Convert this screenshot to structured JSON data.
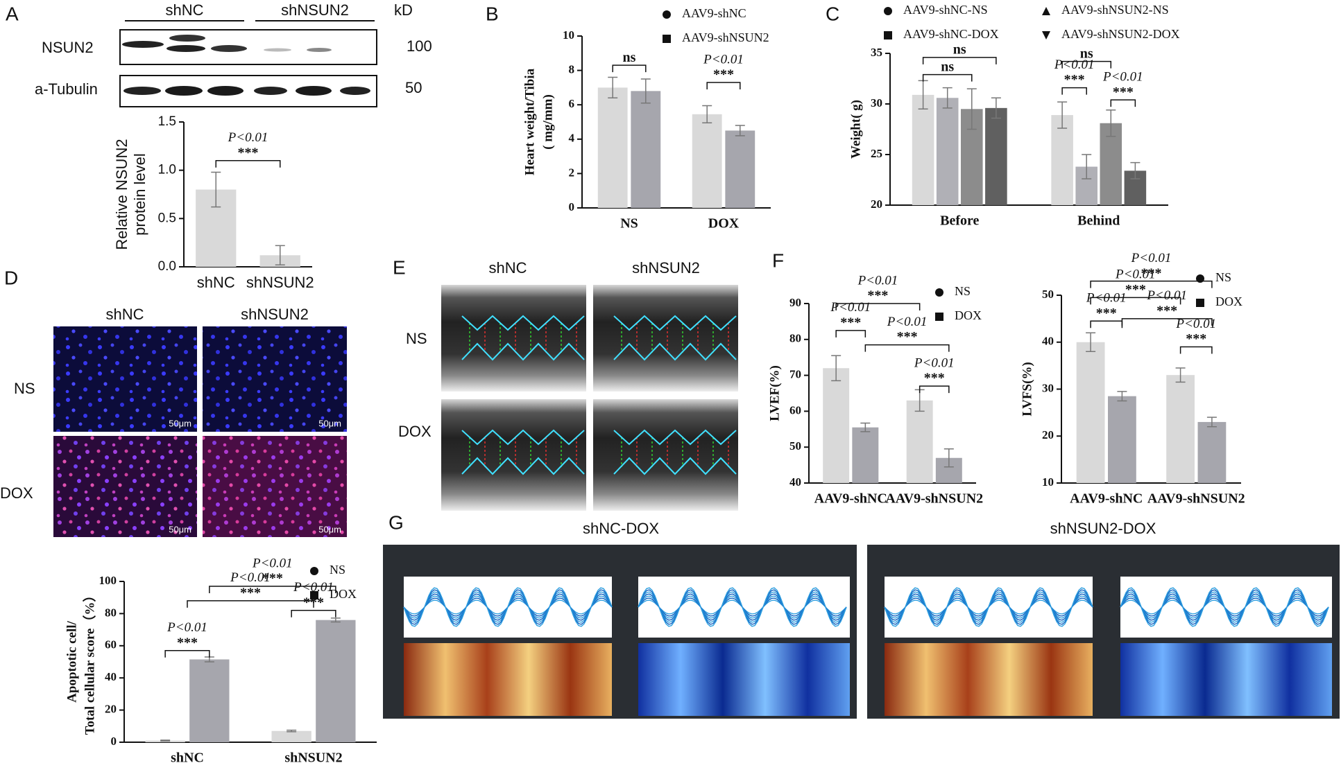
{
  "panels": [
    "A",
    "B",
    "C",
    "D",
    "E",
    "F",
    "G"
  ],
  "blot": {
    "groups": [
      "shNC",
      "shNSUN2"
    ],
    "unit": "kD",
    "rows": [
      {
        "name": "NSUN2",
        "size": "100"
      },
      {
        "name": "a-Tubulin",
        "size": "50"
      }
    ]
  },
  "microscopy": {
    "columns": [
      "shNC",
      "shNSUN2"
    ],
    "rows": [
      "NS",
      "DOX"
    ],
    "scale_bar": "50μm"
  },
  "echo": {
    "columns": [
      "shNC",
      "shNSUN2"
    ],
    "rows": [
      "NS",
      "DOX"
    ]
  },
  "strain": {
    "titles": [
      "shNC-DOX",
      "shNSUN2-DOX"
    ]
  },
  "chart_data": [
    {
      "type": "bar",
      "ylabel": [
        "Relative NSUN2",
        "protein level"
      ],
      "categories": [
        "shNC",
        "shNSUN2"
      ],
      "series": [
        {
          "color": "#d9d9d9",
          "marker": "circle",
          "values": [
            0.8,
            0.12
          ],
          "errors": [
            0.18,
            0.1
          ]
        }
      ],
      "ylim": [
        0,
        1.5
      ],
      "yticks": [
        {
          "value": 0,
          "label": "0.0"
        },
        {
          "value": 0.5,
          "label": "0.5"
        },
        {
          "value": 1,
          "label": "1.0"
        },
        {
          "value": 1.5,
          "label": "1.5"
        }
      ],
      "annotations": [
        {
          "lines": [
            "P<0.01",
            "***"
          ]
        }
      ]
    },
    {
      "type": "bar",
      "ylabel": [
        "Heart weight/Tibia",
        "( mg/mm)"
      ],
      "categories": [
        "NS",
        "DOX"
      ],
      "series": [
        {
          "name": "AAV9-shNC",
          "color": "#d9d9d9",
          "marker": "circle",
          "values": [
            7.0,
            5.45
          ],
          "errors": [
            0.6,
            0.5
          ]
        },
        {
          "name": "AAV9-shNSUN2",
          "color": "#a6a6ad",
          "marker": "square",
          "values": [
            6.8,
            4.5
          ],
          "errors": [
            0.7,
            0.3
          ]
        }
      ],
      "ylim": [
        0,
        10
      ],
      "yticks": [
        0,
        2,
        4,
        6,
        8,
        10
      ],
      "annotations": [
        {
          "lines": [
            "ns"
          ]
        },
        {
          "lines": [
            "P<0.01",
            "***"
          ]
        }
      ]
    },
    {
      "type": "bar",
      "ylabel": [
        "Weight( g)"
      ],
      "categories": [
        "Before",
        "Behind"
      ],
      "series": [
        {
          "name": "AAV9-shNC-NS",
          "color": "#d9d9d9",
          "marker": "circle",
          "values": [
            30.9,
            28.9
          ],
          "errors": [
            1.4,
            1.3
          ]
        },
        {
          "name": "AAV9-shNC-DOX",
          "color": "#b0b0b6",
          "marker": "square",
          "values": [
            30.6,
            23.8
          ],
          "errors": [
            1.0,
            1.2
          ]
        },
        {
          "name": "AAV9-shNSUN2-NS",
          "color": "#8c8c8c",
          "marker": "triangle",
          "values": [
            29.5,
            28.1
          ],
          "errors": [
            2.0,
            1.3
          ]
        },
        {
          "name": "AAV9-shNSUN2-DOX",
          "color": "#606060",
          "marker": "triangle-down",
          "values": [
            29.6,
            23.4
          ],
          "errors": [
            1.0,
            0.8
          ]
        }
      ],
      "ylim": [
        20,
        35
      ],
      "yticks": [
        20,
        25,
        30,
        35
      ],
      "annotations": [
        {
          "lines": [
            "ns"
          ]
        },
        {
          "lines": [
            "ns"
          ]
        },
        {
          "lines": [
            "P<0.01",
            "***"
          ]
        },
        {
          "lines": [
            "ns"
          ]
        },
        {
          "lines": [
            "P<0.01",
            "***"
          ]
        }
      ]
    },
    {
      "type": "bar",
      "ylabel": [
        "Apoptotic cell/",
        "Total cellular score（%）"
      ],
      "categories": [
        "shNC",
        "shNSUN2"
      ],
      "series": [
        {
          "name": "NS",
          "color": "#d9d9d9",
          "marker": "circle",
          "values": [
            1,
            7
          ],
          "errors": [
            0.3,
            0.5
          ]
        },
        {
          "name": "DOX",
          "color": "#a6a6ad",
          "marker": "square",
          "values": [
            51.5,
            76
          ],
          "errors": [
            1.5,
            1.2
          ]
        }
      ],
      "ylim": [
        0,
        100
      ],
      "yticks": [
        0,
        20,
        40,
        60,
        80,
        100
      ],
      "annotations": [
        {
          "lines": [
            "P<0.01",
            "***"
          ]
        },
        {
          "lines": [
            "P<0.01",
            "***"
          ]
        },
        {
          "lines": [
            "P<0.01",
            "***"
          ]
        },
        {
          "lines": [
            "P<0.01",
            "***"
          ]
        }
      ]
    },
    {
      "type": "bar",
      "ylabel": [
        "LVEF(%)"
      ],
      "categories": [
        "AAV9-shNC",
        "AAV9-shNSUN2"
      ],
      "series": [
        {
          "name": "NS",
          "color": "#d9d9d9",
          "marker": "circle",
          "values": [
            72,
            63
          ],
          "errors": [
            3.5,
            3
          ]
        },
        {
          "name": "DOX",
          "color": "#a6a6ad",
          "marker": "square",
          "values": [
            55.5,
            47
          ],
          "errors": [
            1.2,
            2.5
          ]
        }
      ],
      "ylim": [
        40,
        90
      ],
      "yticks": [
        40,
        50,
        60,
        70,
        80,
        90
      ],
      "annotations": [
        {
          "lines": [
            "P<0.01",
            "***"
          ]
        },
        {
          "lines": [
            "P<0.01",
            "***"
          ]
        },
        {
          "lines": [
            "P<0.01",
            "***"
          ]
        },
        {
          "lines": [
            "P<0.01",
            "***"
          ]
        }
      ]
    },
    {
      "type": "bar",
      "ylabel": [
        "LVFS(%)"
      ],
      "categories": [
        "AAV9-shNC",
        "AAV9-shNSUN2"
      ],
      "series": [
        {
          "name": "NS",
          "color": "#d9d9d9",
          "marker": "circle",
          "values": [
            40,
            33
          ],
          "errors": [
            2,
            1.5
          ]
        },
        {
          "name": "DOX",
          "color": "#a6a6ad",
          "marker": "square",
          "values": [
            28.5,
            23
          ],
          "errors": [
            1,
            1
          ]
        }
      ],
      "ylim": [
        10,
        50
      ],
      "yticks": [
        10,
        20,
        30,
        40,
        50
      ],
      "annotations": [
        {
          "lines": [
            "P<0.01",
            "***"
          ]
        },
        {
          "lines": [
            "P<0.01",
            "***"
          ]
        },
        {
          "lines": [
            "P<0.01",
            "***"
          ]
        },
        {
          "lines": [
            "P<0.01",
            "***"
          ]
        },
        {
          "lines": [
            "P<0.01",
            "***"
          ]
        }
      ]
    }
  ]
}
